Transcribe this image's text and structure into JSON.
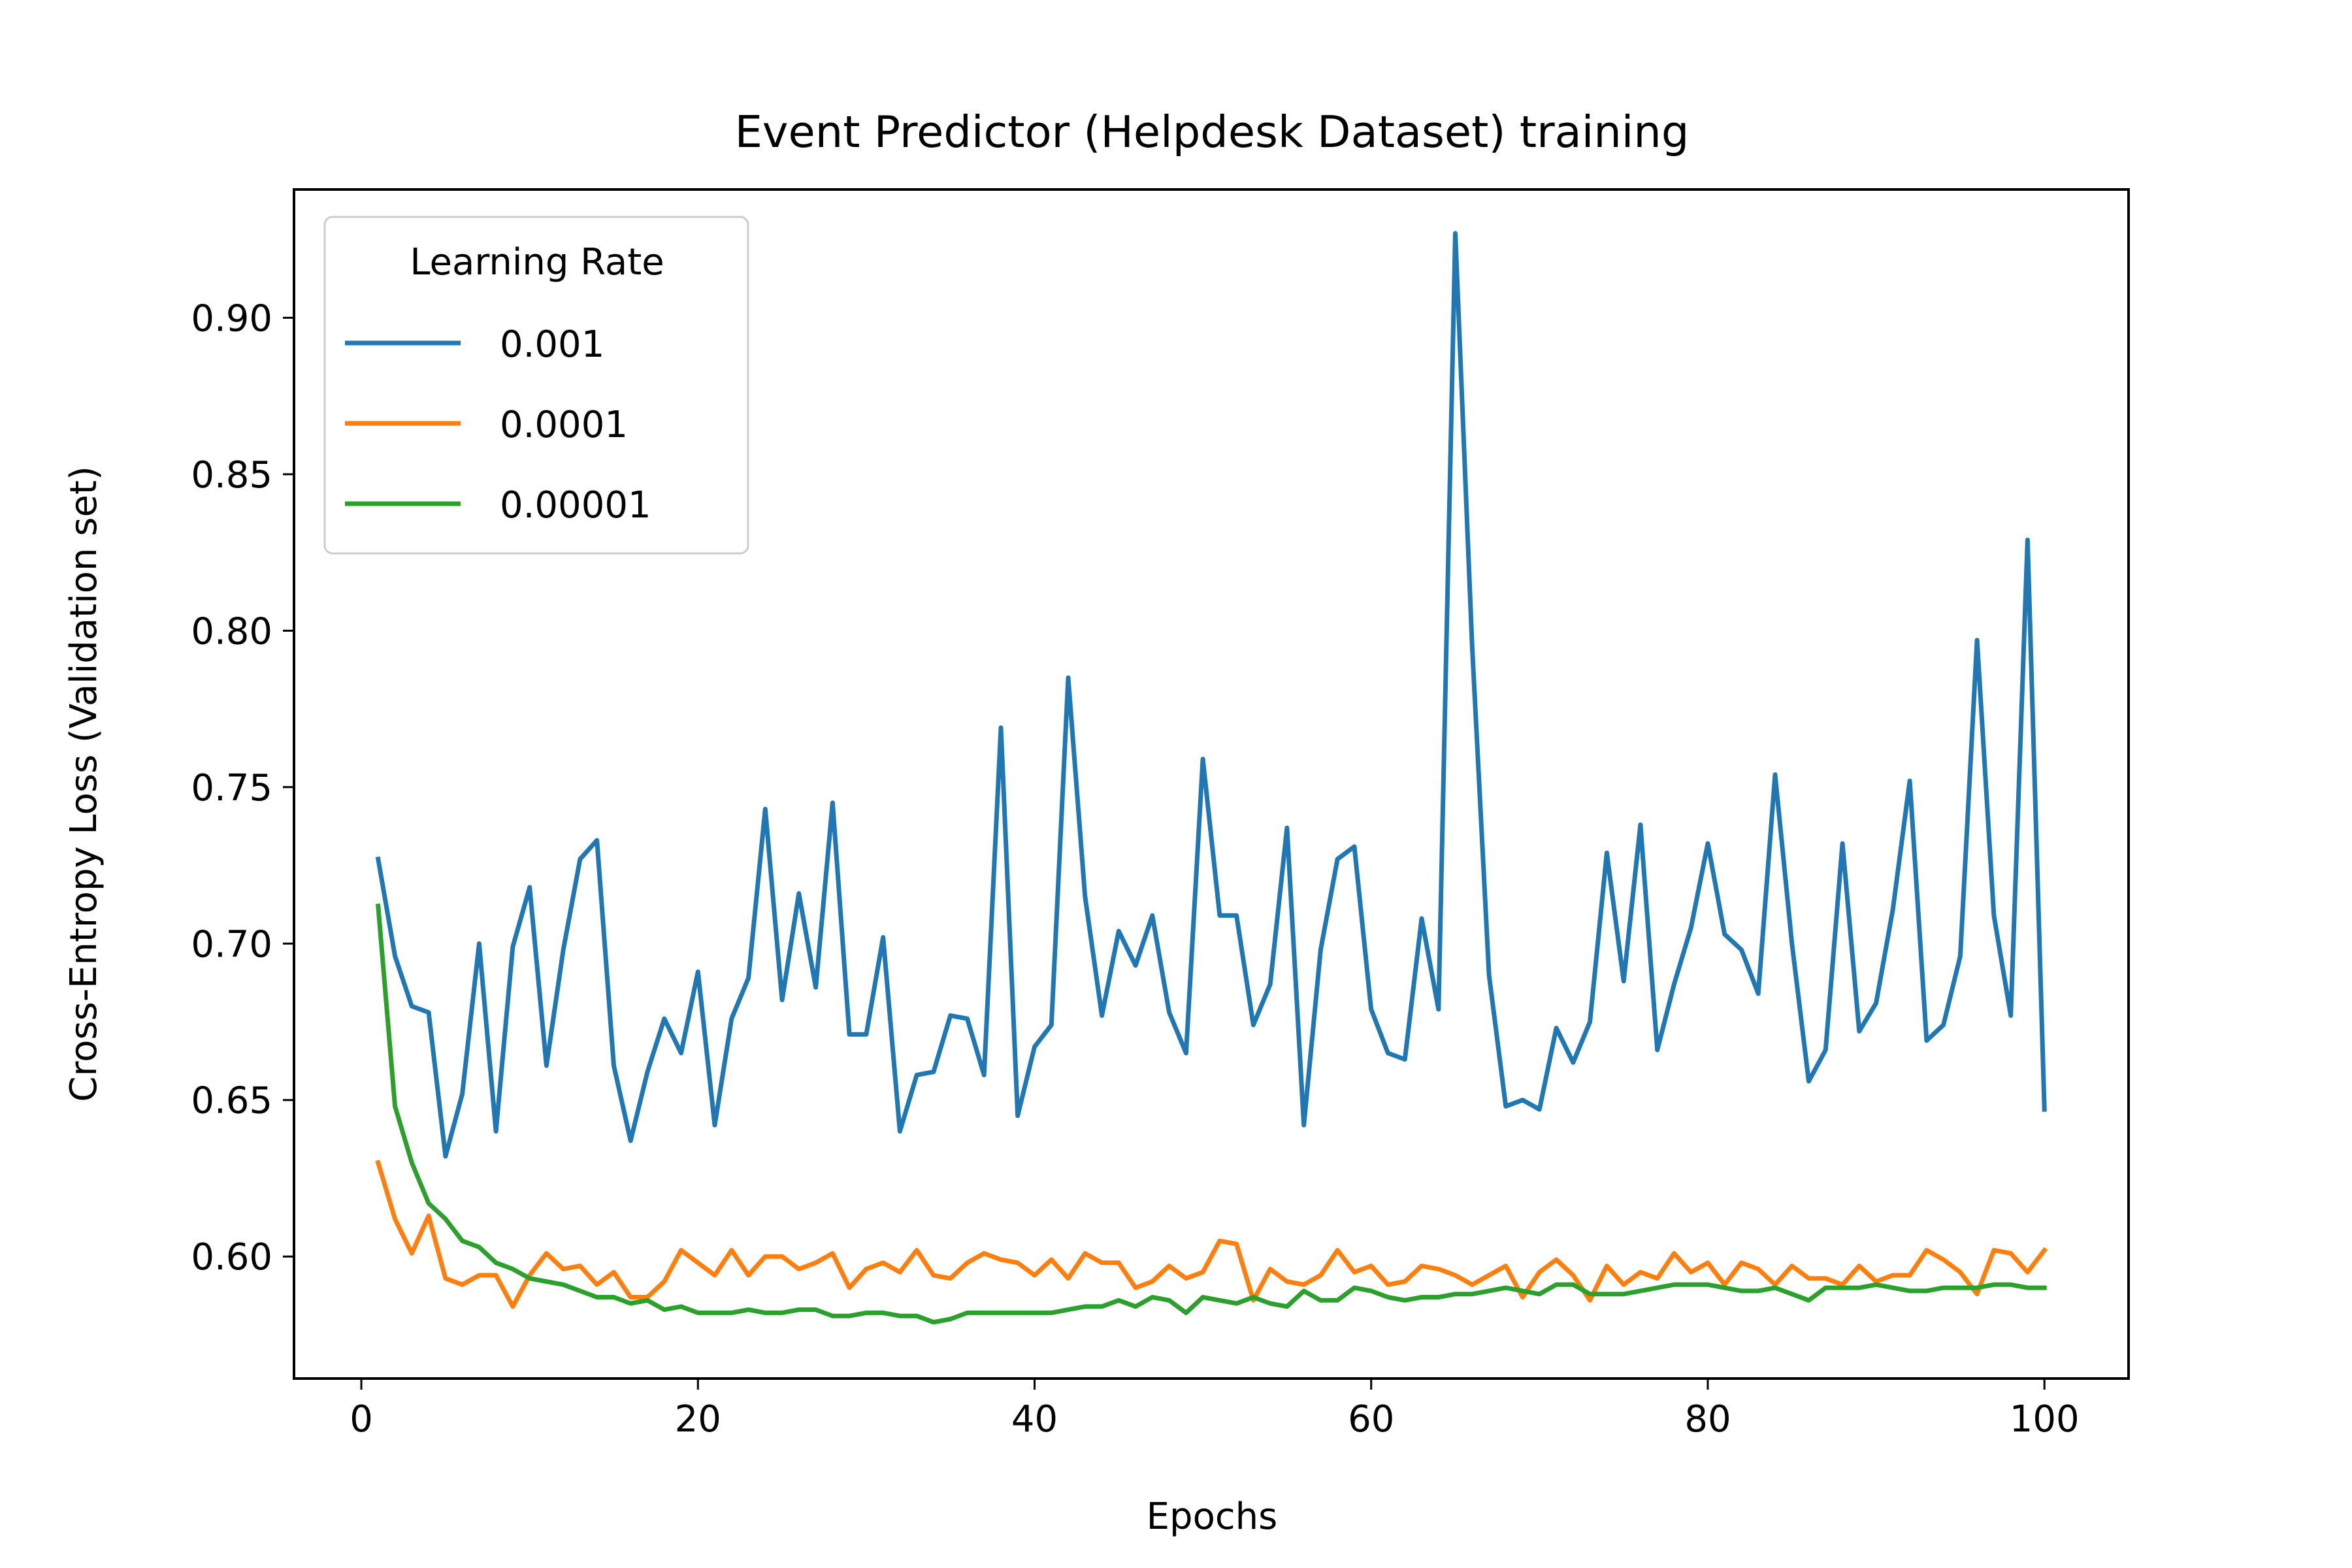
{
  "chart_data": {
    "type": "line",
    "title": "Event Predictor (Helpdesk Dataset) training",
    "xlabel": "Epochs",
    "ylabel": "Cross-Entropy Loss (Validation set)",
    "xlim": [
      -4,
      105
    ],
    "ylim": [
      0.561,
      0.941
    ],
    "xticks": [
      0,
      20,
      40,
      60,
      80,
      100
    ],
    "xtick_labels": [
      "0",
      "20",
      "40",
      "60",
      "80",
      "100"
    ],
    "yticks": [
      0.6,
      0.65,
      0.7,
      0.75,
      0.8,
      0.85,
      0.9
    ],
    "ytick_labels": [
      "0.60",
      "0.65",
      "0.70",
      "0.75",
      "0.80",
      "0.85",
      "0.90"
    ],
    "grid": false,
    "legend": {
      "title": "Learning Rate",
      "placement": "upper-left"
    },
    "series": [
      {
        "name": "0.001",
        "color": "#1f77b4",
        "x_start": 1,
        "values": [
          0.727,
          0.696,
          0.68,
          0.678,
          0.632,
          0.652,
          0.7,
          0.64,
          0.699,
          0.718,
          0.661,
          0.698,
          0.727,
          0.733,
          0.661,
          0.637,
          0.659,
          0.676,
          0.665,
          0.691,
          0.642,
          0.676,
          0.689,
          0.743,
          0.682,
          0.716,
          0.686,
          0.745,
          0.671,
          0.671,
          0.702,
          0.64,
          0.658,
          0.659,
          0.677,
          0.676,
          0.658,
          0.769,
          0.645,
          0.667,
          0.674,
          0.785,
          0.715,
          0.677,
          0.704,
          0.693,
          0.709,
          0.678,
          0.665,
          0.759,
          0.709,
          0.709,
          0.674,
          0.687,
          0.737,
          0.642,
          0.698,
          0.727,
          0.731,
          0.679,
          0.665,
          0.663,
          0.708,
          0.679,
          0.927,
          0.795,
          0.69,
          0.648,
          0.65,
          0.647,
          0.673,
          0.662,
          0.675,
          0.729,
          0.688,
          0.738,
          0.666,
          0.687,
          0.705,
          0.732,
          0.703,
          0.698,
          0.684,
          0.754,
          0.7,
          0.656,
          0.666,
          0.732,
          0.672,
          0.681,
          0.711,
          0.752,
          0.669,
          0.674,
          0.696,
          0.797,
          0.709,
          0.677,
          0.829,
          0.647
        ]
      },
      {
        "name": "0.0001",
        "color": "#ff7f0e",
        "x_start": 1,
        "values": [
          0.63,
          0.612,
          0.601,
          0.613,
          0.593,
          0.591,
          0.594,
          0.594,
          0.584,
          0.594,
          0.601,
          0.596,
          0.597,
          0.591,
          0.595,
          0.587,
          0.587,
          0.592,
          0.602,
          0.598,
          0.594,
          0.602,
          0.594,
          0.6,
          0.6,
          0.596,
          0.598,
          0.601,
          0.59,
          0.596,
          0.598,
          0.595,
          0.602,
          0.594,
          0.593,
          0.598,
          0.601,
          0.599,
          0.598,
          0.594,
          0.599,
          0.593,
          0.601,
          0.598,
          0.598,
          0.59,
          0.592,
          0.597,
          0.593,
          0.595,
          0.605,
          0.604,
          0.586,
          0.596,
          0.592,
          0.591,
          0.594,
          0.602,
          0.595,
          0.597,
          0.591,
          0.592,
          0.597,
          0.596,
          0.594,
          0.591,
          0.594,
          0.597,
          0.587,
          0.595,
          0.599,
          0.594,
          0.586,
          0.597,
          0.591,
          0.595,
          0.593,
          0.601,
          0.595,
          0.598,
          0.591,
          0.598,
          0.596,
          0.591,
          0.597,
          0.593,
          0.593,
          0.591,
          0.597,
          0.592,
          0.594,
          0.594,
          0.602,
          0.599,
          0.595,
          0.588,
          0.602,
          0.601,
          0.595,
          0.602
        ]
      },
      {
        "name": "0.00001",
        "color": "#2ca02c",
        "x_start": 1,
        "values": [
          0.712,
          0.648,
          0.63,
          0.617,
          0.612,
          0.605,
          0.603,
          0.598,
          0.596,
          0.593,
          0.592,
          0.591,
          0.589,
          0.587,
          0.587,
          0.585,
          0.586,
          0.583,
          0.584,
          0.582,
          0.582,
          0.582,
          0.583,
          0.582,
          0.582,
          0.583,
          0.583,
          0.581,
          0.581,
          0.582,
          0.582,
          0.581,
          0.581,
          0.579,
          0.58,
          0.582,
          0.582,
          0.582,
          0.582,
          0.582,
          0.582,
          0.583,
          0.584,
          0.584,
          0.586,
          0.584,
          0.587,
          0.586,
          0.582,
          0.587,
          0.586,
          0.585,
          0.587,
          0.585,
          0.584,
          0.589,
          0.586,
          0.586,
          0.59,
          0.589,
          0.587,
          0.586,
          0.587,
          0.587,
          0.588,
          0.588,
          0.589,
          0.59,
          0.589,
          0.588,
          0.591,
          0.591,
          0.588,
          0.588,
          0.588,
          0.589,
          0.59,
          0.591,
          0.591,
          0.591,
          0.59,
          0.589,
          0.589,
          0.59,
          0.588,
          0.586,
          0.59,
          0.59,
          0.59,
          0.591,
          0.59,
          0.589,
          0.589,
          0.59,
          0.59,
          0.59,
          0.591,
          0.591,
          0.59,
          0.59
        ]
      }
    ]
  }
}
